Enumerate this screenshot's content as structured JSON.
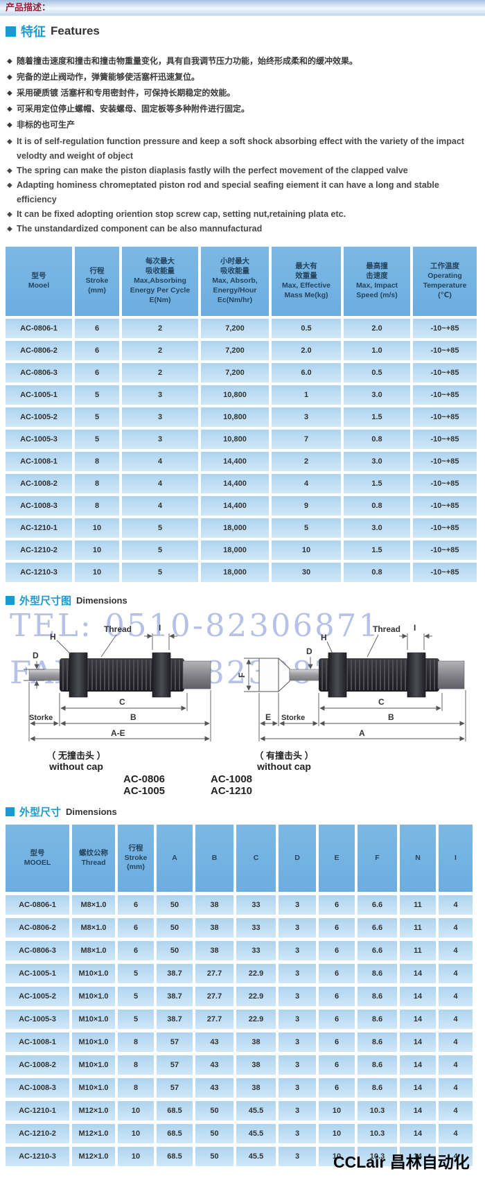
{
  "page": {
    "top_bar": "产品描述：",
    "brand": "CCLair 昌林自动化"
  },
  "features": {
    "title_zh": "特征",
    "title_en": "Features",
    "bullets_zh": [
      "随着撞击速度和撞击和撞击物重量变化，具有自我调节压力功能，始终形成柔和的缓冲效果。",
      "完备的逆止阀动作，弹簧能够使活塞杆迅速复位。",
      "采用硬质镀 活塞杆和专用密封件，可保持长期稳定的效能。",
      "可采用定位停止螺帽、安装螺母、固定板等多种附件进行固定。",
      "非标的也可生产"
    ],
    "bullets_en": [
      "It is of self-regulation function pressure and keep a soft shock absorbing effect with the variety of the impact velodty and weight of object",
      "The spring can make the piston diaplasis fastly wilh the perfect movement of the clapped valve",
      "Adapting hominess chromeptated piston rod and special seafing eiement it can have a long and stable efficiency",
      "It can be fixed adopting oriention stop screw cap, setting nut,retaining plata etc.",
      "The unstandardized component can be also mannufacturad"
    ]
  },
  "spec_table": {
    "columns": [
      [
        "型号",
        "Mooel"
      ],
      [
        "行程",
        "Stroke",
        "(mm)"
      ],
      [
        "每次最大",
        "吸收能量",
        "Max,Absorbing",
        "Energy Per Cycle",
        "E(Nm)"
      ],
      [
        "小时最大",
        "吸收能量",
        "Max, Absorb,",
        "Energy/Hour",
        "Ec(Nm/hr)"
      ],
      [
        "最大有",
        "效重量",
        "Max, Effective",
        "Mass Me(kg)"
      ],
      [
        "最高撞",
        "击速度",
        "Max, Impact",
        "Speed (m/s)"
      ],
      [
        "工作温度",
        "Operating",
        "Temperature",
        "(℃)"
      ]
    ],
    "rows": [
      [
        "AC-0806-1",
        "6",
        "2",
        "7,200",
        "0.5",
        "2.0",
        "-10~+85"
      ],
      [
        "AC-0806-2",
        "6",
        "2",
        "7,200",
        "2.0",
        "1.0",
        "-10~+85"
      ],
      [
        "AC-0806-3",
        "6",
        "2",
        "7,200",
        "6.0",
        "0.5",
        "-10~+85"
      ],
      [
        "AC-1005-1",
        "5",
        "3",
        "10,800",
        "1",
        "3.0",
        "-10~+85"
      ],
      [
        "AC-1005-2",
        "5",
        "3",
        "10,800",
        "3",
        "1.5",
        "-10~+85"
      ],
      [
        "AC-1005-3",
        "5",
        "3",
        "10,800",
        "7",
        "0.8",
        "-10~+85"
      ],
      [
        "AC-1008-1",
        "8",
        "4",
        "14,400",
        "2",
        "3.0",
        "-10~+85"
      ],
      [
        "AC-1008-2",
        "8",
        "4",
        "14,400",
        "4",
        "1.5",
        "-10~+85"
      ],
      [
        "AC-1008-3",
        "8",
        "4",
        "14,400",
        "9",
        "0.8",
        "-10~+85"
      ],
      [
        "AC-1210-1",
        "10",
        "5",
        "18,000",
        "5",
        "3.0",
        "-10~+85"
      ],
      [
        "AC-1210-2",
        "10",
        "5",
        "18,000",
        "10",
        "1.5",
        "-10~+85"
      ],
      [
        "AC-1210-3",
        "10",
        "5",
        "18,000",
        "30",
        "0.8",
        "-10~+85"
      ]
    ]
  },
  "dimensions_diagram": {
    "title_zh": "外型尺寸图",
    "title_en": "Dimensions",
    "watermark_tel": "TEL: 0510-82306871",
    "watermark_fax": "FAX: 0510-82328771",
    "left": {
      "labels": {
        "h": "H",
        "d": "D",
        "thread": "Thread",
        "i": "I",
        "c": "C",
        "b": "B",
        "storke": "Storke",
        "ae": "A-E"
      },
      "caption_zh": "（ 无撞击头 ）",
      "caption_en": "without cap",
      "models": [
        "AC-0806",
        "AC-1005"
      ]
    },
    "right": {
      "labels": {
        "f": "F",
        "h": "H",
        "d": "D",
        "thread": "Thread",
        "i": "I",
        "c": "C",
        "b": "B",
        "storke": "Storke",
        "e": "E",
        "a": "A"
      },
      "caption_zh": "（ 有撞击头 ）",
      "caption_en": "without cap",
      "models": [
        "AC-1008",
        "AC-1210"
      ]
    }
  },
  "dim_table": {
    "title_zh": "外型尺寸",
    "title_en": "Dimensions",
    "columns": [
      [
        "型号",
        "MOOEL"
      ],
      [
        "螺纹公称",
        "Thread"
      ],
      [
        "行程",
        "Stroke",
        "(mm)"
      ],
      [
        "A"
      ],
      [
        "B"
      ],
      [
        "C"
      ],
      [
        "D"
      ],
      [
        "E"
      ],
      [
        "F"
      ],
      [
        "N"
      ],
      [
        "I"
      ]
    ],
    "rows": [
      [
        "AC-0806-1",
        "M8×1.0",
        "6",
        "50",
        "38",
        "33",
        "3",
        "6",
        "6.6",
        "11",
        "4"
      ],
      [
        "AC-0806-2",
        "M8×1.0",
        "6",
        "50",
        "38",
        "33",
        "3",
        "6",
        "6.6",
        "11",
        "4"
      ],
      [
        "AC-0806-3",
        "M8×1.0",
        "6",
        "50",
        "38",
        "33",
        "3",
        "6",
        "6.6",
        "11",
        "4"
      ],
      [
        "AC-1005-1",
        "M10×1.0",
        "5",
        "38.7",
        "27.7",
        "22.9",
        "3",
        "6",
        "8.6",
        "14",
        "4"
      ],
      [
        "AC-1005-2",
        "M10×1.0",
        "5",
        "38.7",
        "27.7",
        "22.9",
        "3",
        "6",
        "8.6",
        "14",
        "4"
      ],
      [
        "AC-1005-3",
        "M10×1.0",
        "5",
        "38.7",
        "27.7",
        "22.9",
        "3",
        "6",
        "8.6",
        "14",
        "4"
      ],
      [
        "AC-1008-1",
        "M10×1.0",
        "8",
        "57",
        "43",
        "38",
        "3",
        "6",
        "8.6",
        "14",
        "4"
      ],
      [
        "AC-1008-2",
        "M10×1.0",
        "8",
        "57",
        "43",
        "38",
        "3",
        "6",
        "8.6",
        "14",
        "4"
      ],
      [
        "AC-1008-3",
        "M10×1.0",
        "8",
        "57",
        "43",
        "38",
        "3",
        "6",
        "8.6",
        "14",
        "4"
      ],
      [
        "AC-1210-1",
        "M12×1.0",
        "10",
        "68.5",
        "50",
        "45.5",
        "3",
        "10",
        "10.3",
        "14",
        "4"
      ],
      [
        "AC-1210-2",
        "M12×1.0",
        "10",
        "68.5",
        "50",
        "45.5",
        "3",
        "10",
        "10.3",
        "14",
        "4"
      ],
      [
        "AC-1210-3",
        "M12×1.0",
        "10",
        "68.5",
        "50",
        "45.5",
        "3",
        "10",
        "10.3",
        "14",
        "4"
      ]
    ]
  }
}
